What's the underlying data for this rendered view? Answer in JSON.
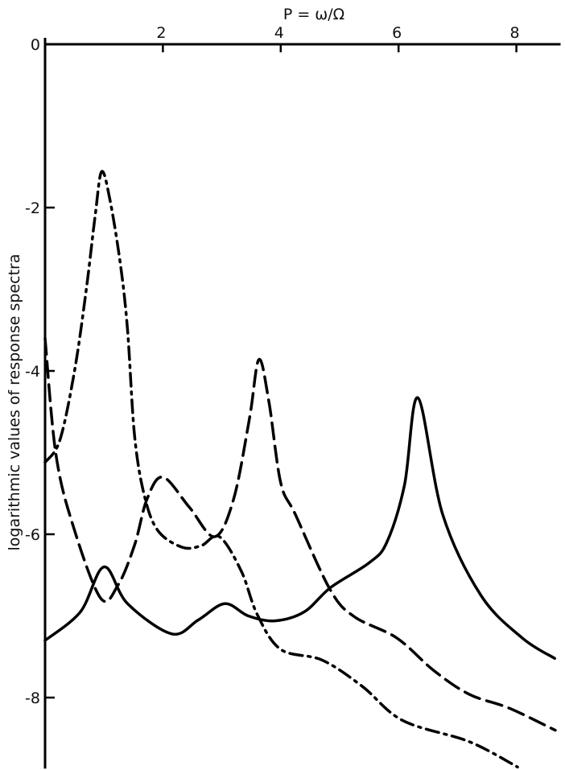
{
  "chart_data": {
    "type": "line",
    "title": "",
    "xlabel": "P = ω/Ω",
    "ylabel": "logarithmic values of response spectra",
    "xlim": [
      0,
      8.75
    ],
    "ylim": [
      -8.87,
      0
    ],
    "x_ticks": [
      2,
      4,
      6,
      8
    ],
    "y_ticks": [
      0,
      -2,
      -4,
      -6,
      -8
    ],
    "x_axis_position": "top",
    "grid": false,
    "legend": "none",
    "line_color": "#000000",
    "series": [
      {
        "style": "dash-dot",
        "x": [
          0,
          0.25,
          0.5,
          0.7,
          0.85,
          0.96,
          1.1,
          1.28,
          1.4,
          1.52,
          1.69,
          1.92,
          2.33,
          2.65,
          2.96,
          3.33,
          3.6,
          4.0,
          4.7,
          5.38,
          6.07,
          7.2,
          8.02
        ],
        "y": [
          -5.12,
          -4.85,
          -4.0,
          -3.0,
          -2.1,
          -1.56,
          -1.9,
          -2.7,
          -3.5,
          -4.8,
          -5.54,
          -5.96,
          -6.16,
          -6.14,
          -6.03,
          -6.45,
          -6.98,
          -7.41,
          -7.54,
          -7.86,
          -8.28,
          -8.54,
          -8.85
        ]
      },
      {
        "style": "dashed",
        "x": [
          0,
          0.18,
          0.46,
          0.94,
          1.24,
          1.52,
          1.73,
          2.0,
          2.45,
          2.88,
          3.2,
          3.47,
          3.63,
          3.8,
          4.0,
          4.25,
          4.84,
          5.25,
          5.97,
          6.6,
          7.2,
          7.88,
          8.66
        ],
        "y": [
          -3.6,
          -5.0,
          -5.86,
          -6.78,
          -6.62,
          -6.13,
          -5.57,
          -5.3,
          -5.67,
          -6.03,
          -5.57,
          -4.58,
          -3.86,
          -4.38,
          -5.37,
          -5.76,
          -6.68,
          -7.01,
          -7.27,
          -7.67,
          -7.96,
          -8.13,
          -8.4
        ]
      },
      {
        "style": "solid",
        "x": [
          0,
          0.6,
          1.0,
          1.4,
          2.15,
          2.6,
          3.05,
          3.45,
          3.9,
          4.4,
          4.85,
          5.5,
          5.8,
          6.1,
          6.33,
          6.75,
          7.4,
          8.1,
          8.65
        ],
        "y": [
          -7.3,
          -6.95,
          -6.4,
          -6.85,
          -7.22,
          -7.05,
          -6.85,
          -7.0,
          -7.06,
          -6.95,
          -6.65,
          -6.35,
          -6.1,
          -5.4,
          -4.33,
          -5.76,
          -6.75,
          -7.27,
          -7.52
        ]
      }
    ]
  }
}
